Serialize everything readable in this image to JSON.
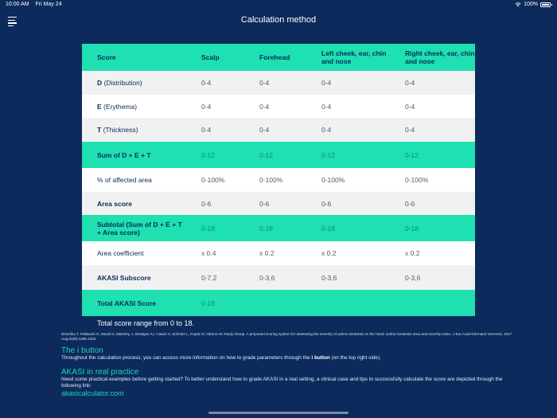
{
  "status_bar": {
    "time": "10:00 AM",
    "date": "Fri May 24",
    "battery": "100%"
  },
  "header": {
    "title": "Calculation method"
  },
  "table": {
    "headers": [
      "Score",
      "Scalp",
      "Forehead",
      "Left cheek, ear, chin and nose",
      "Right cheek, ear, chin and nose"
    ],
    "rows": [
      {
        "label_bold": "D",
        "label_rest": " (Distribution)",
        "values": [
          "0-4",
          "0-4",
          "0-4",
          "0-4"
        ]
      },
      {
        "label_bold": "E",
        "label_rest": " (Erythema)",
        "values": [
          "0-4",
          "0-4",
          "0-4",
          "0-4"
        ]
      },
      {
        "label_bold": "T",
        "label_rest": " (Thickness)",
        "values": [
          "0-4",
          "0-4",
          "0-4",
          "0-4"
        ]
      },
      {
        "label_bold": "Sum of D + E + T",
        "label_rest": "",
        "values": [
          "0-12",
          "0-12",
          "0-12",
          "0-12"
        ]
      },
      {
        "label_bold": "",
        "label_rest": "% of affected area",
        "values": [
          "0-100%",
          "0-100%",
          "0-100%",
          "0-100%"
        ]
      },
      {
        "label_bold": "Area score",
        "label_rest": "",
        "values": [
          "0-6",
          "0-6",
          "0-6",
          "0-6"
        ]
      },
      {
        "label_bold": "Subtotal (Sum of D + E + T + Area score)",
        "label_rest": "",
        "values": [
          "0-18",
          "0-18",
          "0-18",
          "0-18"
        ]
      },
      {
        "label_bold": "",
        "label_rest": "Area coefficient",
        "values": [
          "x 0.4",
          "x 0.2",
          "x 0.2",
          "x 0.2"
        ]
      },
      {
        "label_bold": "AKASI Subscore",
        "label_rest": "",
        "values": [
          "0-7,2",
          "0-3,6",
          "0-3,6",
          "0-3,6"
        ]
      },
      {
        "label_bold": "Total AKASI Score",
        "label_rest": "",
        "values": [
          "0-18",
          "",
          "",
          ""
        ]
      }
    ]
  },
  "range_text": "Total score range from 0 to 18.",
  "reference": "Dirschka T, Pellacani G, Micali G, Malvehy J, Stratigos AJ, Casari A, Schmitz L, Gupta G; Athens AK Study Group. A proposed scoring system for assessing the severity of actinic keratosis on the head: actinic keratosis area and severity index. J Eur Acad Dermatol Venereol. 2017 Aug;31(8):1295-1302.",
  "i_button": {
    "title": "The i button",
    "text_before": "Throughout the calculation process, you can access more information on how to grade parameters through the ",
    "text_bold": "i button",
    "text_after": " (on the top right side)."
  },
  "practice": {
    "title": "AKASI in real practice",
    "text": "Need some practical examples before getting started? To better understand how to grade AKASI in a real setting, a clinical case and tips to successfully calculate the score are depicted through the following link:",
    "link": "akasicalculator.com"
  },
  "colors": {
    "background": "#0c2a5c",
    "accent": "#1ee0b0",
    "text_dark": "#0c2a5c"
  }
}
